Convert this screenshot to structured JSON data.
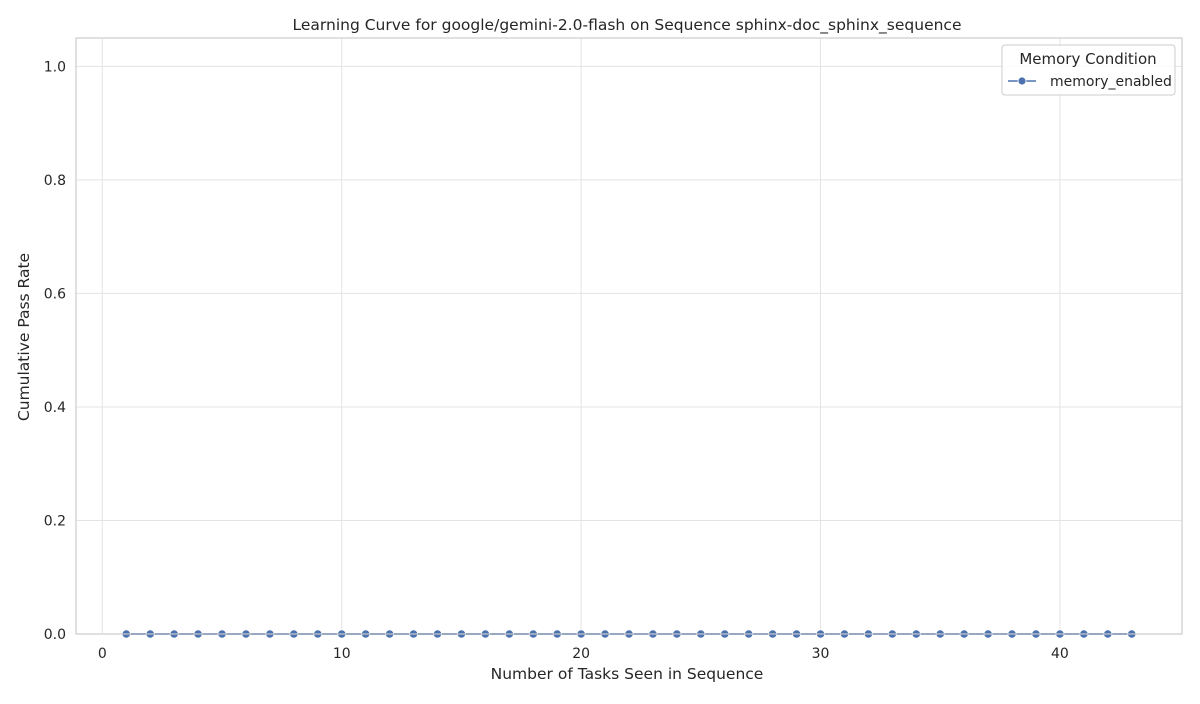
{
  "chart_data": {
    "type": "line",
    "title": "Learning Curve for google/gemini-2.0-flash on Sequence sphinx-doc_sphinx_sequence",
    "xlabel": "Number of Tasks Seen in Sequence",
    "ylabel": "Cumulative Pass Rate",
    "xlim": [
      -1.1,
      45.1
    ],
    "ylim": [
      0,
      1.05
    ],
    "xticks": [
      0,
      10,
      20,
      30,
      40
    ],
    "yticks": [
      0.0,
      0.2,
      0.4,
      0.6,
      0.8,
      1.0
    ],
    "xtick_labels": [
      "0",
      "10",
      "20",
      "30",
      "40"
    ],
    "ytick_labels": [
      "0.0",
      "0.2",
      "0.4",
      "0.6",
      "0.8",
      "1.0"
    ],
    "grid": true,
    "legend": {
      "title": "Memory Condition",
      "placement": "top-right"
    },
    "series": [
      {
        "name": "memory_enabled",
        "color": "#4c72b0",
        "marker": "circle",
        "x": [
          1,
          2,
          3,
          4,
          5,
          6,
          7,
          8,
          9,
          10,
          11,
          12,
          13,
          14,
          15,
          16,
          17,
          18,
          19,
          20,
          21,
          22,
          23,
          24,
          25,
          26,
          27,
          28,
          29,
          30,
          31,
          32,
          33,
          34,
          35,
          36,
          37,
          38,
          39,
          40,
          41,
          42,
          43
        ],
        "y": [
          0,
          0,
          0,
          0,
          0,
          0,
          0,
          0,
          0,
          0,
          0,
          0,
          0,
          0,
          0,
          0,
          0,
          0,
          0,
          0,
          0,
          0,
          0,
          0,
          0,
          0,
          0,
          0,
          0,
          0,
          0,
          0,
          0,
          0,
          0,
          0,
          0,
          0,
          0,
          0,
          0,
          0,
          0
        ]
      }
    ]
  }
}
